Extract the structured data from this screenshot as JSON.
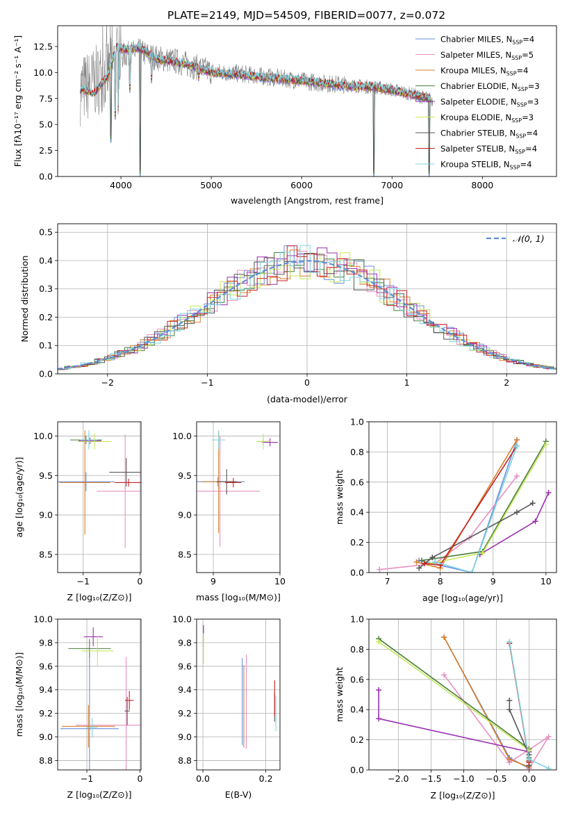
{
  "figure": {
    "title": "PLATE=2149, MJD=54509, FIBERID=0077, z=0.072"
  },
  "palette": {
    "Chabrier MILES": "#6a8fdc",
    "Salpeter MILES": "#e88fc0",
    "Kroupa MILES": "#d87f2b",
    "Chabrier ELODIE": "#4a7d3a",
    "Salpeter ELODIE": "#9a2fb0",
    "Kroupa ELODIE": "#c6e85a",
    "Chabrier STELIB": "#555555",
    "Salpeter STELIB": "#c81f1f",
    "Kroupa STELIB": "#7fd3e0"
  },
  "chart_data": [
    {
      "id": "spectrum",
      "type": "line",
      "title": "PLATE=2149, MJD=54509, FIBERID=0077, z=0.072",
      "xlabel": "wavelength [Angstrom, rest frame]",
      "ylabel": "Flux [fλ10⁻¹⁷ erg cm⁻² s⁻¹ A⁻¹]",
      "xlim": [
        3300,
        8820
      ],
      "ylim": [
        0,
        14.5
      ],
      "xticks": [
        4000,
        5000,
        6000,
        7000,
        8000
      ],
      "yticks": [
        0.0,
        2.5,
        5.0,
        7.5,
        10.0,
        12.5
      ],
      "legend": "top-right",
      "legend_entries": [
        "Chabrier MILES, N_SSP=4",
        "Salpeter MILES, N_SSP=5",
        "Kroupa MILES, N_SSP=4",
        "Chabrier ELODIE, N_SSP=3",
        "Salpeter ELODIE, N_SSP=3",
        "Kroupa ELODIE, N_SSP=3",
        "Chabrier STELIB, N_SSP=4",
        "Salpeter STELIB, N_SSP=4",
        "Kroupa STELIB, N_SSP=4"
      ],
      "data_continuum": {
        "x": [
          3550,
          3700,
          3850,
          4000,
          4200,
          4400,
          4600,
          4800,
          5000,
          5300,
          5600,
          5900,
          6200,
          6500,
          6800,
          7100,
          7350,
          7450
        ],
        "y": [
          8.3,
          9.0,
          10.0,
          11.6,
          12.0,
          11.4,
          11.1,
          10.6,
          10.1,
          9.9,
          9.6,
          9.3,
          9.0,
          8.8,
          8.6,
          8.2,
          7.6,
          7.4
        ]
      },
      "model": {
        "x": [
          3550,
          3700,
          3850,
          3950,
          4050,
          4200,
          4400,
          4600,
          4800,
          5000,
          5300,
          5600,
          5900,
          6200,
          6500,
          6800,
          7100,
          7350,
          7430
        ],
        "y": [
          8.4,
          8.0,
          9.6,
          12.4,
          12.2,
          12.4,
          11.3,
          11.0,
          10.6,
          10.0,
          9.8,
          9.5,
          9.3,
          9.0,
          8.7,
          8.6,
          8.1,
          7.6,
          7.5
        ]
      },
      "absorption_dips": [
        {
          "x": 3890,
          "y": 3.3
        },
        {
          "x": 3935,
          "y": 5.5
        },
        {
          "x": 3970,
          "y": 6.0
        },
        {
          "x": 4100,
          "y": 8.1
        },
        {
          "x": 4215,
          "y": 0.0
        },
        {
          "x": 4340,
          "y": 9.0
        },
        {
          "x": 4860,
          "y": 9.2
        },
        {
          "x": 6800,
          "y": 0.0
        },
        {
          "x": 7410,
          "y": 0.0
        }
      ]
    },
    {
      "id": "residuals",
      "type": "line",
      "xlabel": "(data-model)/error",
      "ylabel": "Normed distribution",
      "xlim": [
        -2.5,
        2.5
      ],
      "ylim": [
        0,
        0.53
      ],
      "xticks": [
        -2,
        -1,
        0,
        1,
        2
      ],
      "yticks": [
        0.0,
        0.1,
        0.2,
        0.3,
        0.4,
        0.5
      ],
      "grid": true,
      "legend": "top-right",
      "reference_curve": {
        "label": "𝒩(0, 1)",
        "mean": 0,
        "sigma": 1
      }
    },
    {
      "id": "z_vs_age",
      "type": "scatter",
      "xlabel": "Z [log₁₀(Z/Z⊙)]",
      "ylabel": "age  [log₁₀(age/yr)]",
      "xlim": [
        -1.45,
        0.02
      ],
      "ylim": [
        8.27,
        10.18
      ],
      "xticks": [
        -1,
        0
      ],
      "yticks": [
        8.5,
        9.0,
        9.5,
        10.0
      ],
      "grid": true,
      "points": [
        {
          "model": "Chabrier MILES",
          "x": -0.95,
          "xerr": 0.5,
          "y": 9.42,
          "yerr": 0.12
        },
        {
          "model": "Salpeter MILES",
          "x": -0.26,
          "xerr": 0.5,
          "y": 9.3,
          "yerr": 0.72
        },
        {
          "model": "Kroupa MILES",
          "x": -0.97,
          "xerr": 0.45,
          "y": 9.41,
          "yerr": 0.66
        },
        {
          "model": "Chabrier ELODIE",
          "x": -0.95,
          "xerr": 0.28,
          "y": 9.95,
          "yerr": 0.05
        },
        {
          "model": "Salpeter ELODIE",
          "x": -0.88,
          "xerr": 0.2,
          "y": 9.94,
          "yerr": 0.04
        },
        {
          "model": "Kroupa ELODIE",
          "x": -0.8,
          "xerr": 0.3,
          "y": 9.93,
          "yerr": 0.1
        },
        {
          "model": "Chabrier STELIB",
          "x": -0.24,
          "xerr": 0.3,
          "y": 9.54,
          "yerr": 0.18
        },
        {
          "model": "Salpeter STELIB",
          "x": -0.2,
          "xerr": 0.25,
          "y": 9.41,
          "yerr": 0.05
        },
        {
          "model": "Kroupa STELIB",
          "x": -0.9,
          "xerr": 0.15,
          "y": 9.95,
          "yerr": 0.12
        }
      ]
    },
    {
      "id": "mass_vs_age",
      "type": "scatter",
      "xlabel": "mass [log₁₀(M/M⊙)]",
      "xlim": [
        8.75,
        10.0
      ],
      "ylim": [
        8.27,
        10.18
      ],
      "xticks": [
        9,
        10
      ],
      "yticks": [
        8.5,
        9.0,
        9.5,
        10.0
      ],
      "grid": true,
      "points": [
        {
          "model": "Chabrier MILES",
          "x": 9.07,
          "xerr": 0.4,
          "y": 9.42,
          "yerr": 0.06
        },
        {
          "model": "Salpeter MILES",
          "x": 9.1,
          "xerr": 0.6,
          "y": 9.3,
          "yerr": 0.7
        },
        {
          "model": "Kroupa MILES",
          "x": 9.08,
          "xerr": 0.25,
          "y": 9.42,
          "yerr": 0.65
        },
        {
          "model": "Chabrier ELODIE",
          "x": 9.75,
          "xerr": 0.1,
          "y": 9.93,
          "yerr": 0.05
        },
        {
          "model": "Salpeter ELODIE",
          "x": 9.85,
          "xerr": 0.12,
          "y": 9.92,
          "yerr": 0.05
        },
        {
          "model": "Kroupa ELODIE",
          "x": 9.75,
          "xerr": 0.1,
          "y": 9.93,
          "yerr": 0.1
        },
        {
          "model": "Chabrier STELIB",
          "x": 9.2,
          "xerr": 0.15,
          "y": 9.42,
          "yerr": 0.16
        },
        {
          "model": "Salpeter STELIB",
          "x": 9.3,
          "xerr": 0.12,
          "y": 9.41,
          "yerr": 0.06
        },
        {
          "model": "Kroupa STELIB",
          "x": 9.08,
          "xerr": 0.1,
          "y": 9.95,
          "yerr": 0.12
        }
      ]
    },
    {
      "id": "age_vs_weight",
      "type": "line",
      "xlabel": "age  [log₁₀(age/yr)]",
      "ylabel": "mass weight",
      "xlim": [
        6.65,
        10.2
      ],
      "ylim": [
        0,
        1.0
      ],
      "xticks": [
        7,
        8,
        9,
        10
      ],
      "yticks": [
        0.0,
        0.2,
        0.4,
        0.6,
        0.8,
        1.0
      ],
      "grid": true,
      "series": [
        {
          "name": "Chabrier MILES",
          "x": [
            7.6,
            8.6,
            9.45
          ],
          "y": [
            0.08,
            0.0,
            0.88
          ]
        },
        {
          "name": "Salpeter MILES",
          "x": [
            6.85,
            7.9,
            8.55,
            9.45
          ],
          "y": [
            0.02,
            0.06,
            0.23,
            0.64
          ]
        },
        {
          "name": "Kroupa MILES",
          "x": [
            7.55,
            8.0,
            9.45
          ],
          "y": [
            0.07,
            0.03,
            0.88
          ]
        },
        {
          "name": "Chabrier ELODIE",
          "x": [
            7.65,
            8.8,
            10.0
          ],
          "y": [
            0.08,
            0.14,
            0.87
          ]
        },
        {
          "name": "Salpeter ELODIE",
          "x": [
            8.75,
            9.8,
            10.05
          ],
          "y": [
            0.12,
            0.34,
            0.53
          ]
        },
        {
          "name": "Kroupa ELODIE",
          "x": [
            7.8,
            8.8,
            10.0
          ],
          "y": [
            0.06,
            0.13,
            0.85
          ]
        },
        {
          "name": "Chabrier STELIB",
          "x": [
            7.6,
            7.85,
            9.45,
            9.75
          ],
          "y": [
            0.03,
            0.1,
            0.4,
            0.46
          ]
        },
        {
          "name": "Salpeter STELIB",
          "x": [
            7.7,
            8.0,
            9.45
          ],
          "y": [
            0.06,
            0.05,
            0.84
          ]
        },
        {
          "name": "Kroupa STELIB",
          "x": [
            7.9,
            8.6,
            9.45
          ],
          "y": [
            0.07,
            0.0,
            0.84
          ]
        }
      ]
    },
    {
      "id": "z_vs_mass",
      "type": "scatter",
      "xlabel": "Z [log₁₀(Z/Z⊙)]",
      "ylabel": "mass [log₁₀(M/M⊙)]",
      "xlim": [
        -1.55,
        0.02
      ],
      "ylim": [
        8.72,
        10.0
      ],
      "xticks": [
        -1,
        0
      ],
      "yticks": [
        8.8,
        9.0,
        9.2,
        9.4,
        9.6,
        9.8,
        10.0
      ],
      "grid": true,
      "points": [
        {
          "model": "Chabrier MILES",
          "x": -0.95,
          "xerr": 0.55,
          "y": 9.07,
          "yerr": 0.6
        },
        {
          "model": "Salpeter MILES",
          "x": -0.26,
          "xerr": 0.95,
          "y": 9.1,
          "yerr": 0.58
        },
        {
          "model": "Kroupa MILES",
          "x": -0.97,
          "xerr": 0.5,
          "y": 9.09,
          "yerr": 0.18
        },
        {
          "model": "Chabrier ELODIE",
          "x": -0.95,
          "xerr": 0.4,
          "y": 9.75,
          "yerr": 0.08
        },
        {
          "model": "Salpeter ELODIE",
          "x": -0.88,
          "xerr": 0.18,
          "y": 9.85,
          "yerr": 0.08
        },
        {
          "model": "Kroupa ELODIE",
          "x": -0.8,
          "xerr": 0.3,
          "y": 9.73,
          "yerr": 0.13
        },
        {
          "model": "Chabrier STELIB",
          "x": -0.24,
          "xerr": 0.05,
          "y": 9.22,
          "yerr": 0.12
        },
        {
          "model": "Salpeter STELIB",
          "x": -0.2,
          "xerr": 0.08,
          "y": 9.31,
          "yerr": 0.08
        },
        {
          "model": "Kroupa STELIB",
          "x": -0.9,
          "xerr": 0.1,
          "y": 9.08,
          "yerr": 0.08
        }
      ]
    },
    {
      "id": "ebv_vs_mass",
      "type": "scatter",
      "xlabel": "E(B-V)",
      "xlim": [
        -0.02,
        0.245
      ],
      "ylim": [
        8.72,
        10.0
      ],
      "xticks": [
        0.0,
        0.2
      ],
      "yticks": [
        8.8,
        9.0,
        9.2,
        9.4,
        9.6,
        9.8,
        10.0
      ],
      "grid": true,
      "points": [
        {
          "model": "Chabrier MILES",
          "x": 0.125,
          "y": 9.3,
          "yerr": 0.37
        },
        {
          "model": "Salpeter MILES",
          "x": 0.138,
          "y": 9.3,
          "yerr": 0.4
        },
        {
          "model": "Kroupa MILES",
          "x": 0.13,
          "y": 9.26,
          "yerr": 0.35
        },
        {
          "model": "Chabrier ELODIE",
          "x": 0.002,
          "y": 9.85,
          "yerr": 0.08
        },
        {
          "model": "Salpeter ELODIE",
          "x": 0.002,
          "y": 9.87,
          "yerr": 0.08
        },
        {
          "model": "Kroupa ELODIE",
          "x": 0.002,
          "y": 9.75,
          "yerr": 0.13
        },
        {
          "model": "Chabrier STELIB",
          "x": 0.228,
          "y": 9.25,
          "yerr": 0.12
        },
        {
          "model": "Salpeter STELIB",
          "x": 0.228,
          "y": 9.33,
          "yerr": 0.15
        },
        {
          "model": "Kroupa STELIB",
          "x": 0.232,
          "y": 9.2,
          "yerr": 0.15
        }
      ]
    },
    {
      "id": "z_vs_weight",
      "type": "line",
      "xlabel": "Z [log₁₀(Z/Z⊙)]",
      "ylabel": "mass weight",
      "xlim": [
        -2.45,
        0.42
      ],
      "ylim": [
        0,
        1.0
      ],
      "xticks": [
        -2.0,
        -1.5,
        -1.0,
        -0.5,
        0.0
      ],
      "yticks": [
        0.0,
        0.2,
        0.4,
        0.6,
        0.8,
        1.0
      ],
      "grid": true,
      "series": [
        {
          "name": "Chabrier MILES",
          "x": [
            -1.3,
            -0.3,
            0.0
          ],
          "y": [
            0.88,
            0.08,
            0.01
          ]
        },
        {
          "name": "Salpeter MILES",
          "x": [
            -1.3,
            -0.3,
            0.3,
            0.0
          ],
          "y": [
            0.63,
            0.05,
            0.22,
            0.01
          ]
        },
        {
          "name": "Kroupa MILES",
          "x": [
            -1.3,
            -0.3,
            0.0
          ],
          "y": [
            0.88,
            0.07,
            0.02
          ]
        },
        {
          "name": "Chabrier ELODIE",
          "x": [
            -2.3,
            0.0,
            0.0
          ],
          "y": [
            0.87,
            0.14,
            0.08
          ]
        },
        {
          "name": "Salpeter ELODIE",
          "x": [
            -2.3,
            -2.3,
            0.0
          ],
          "y": [
            0.53,
            0.34,
            0.12
          ]
        },
        {
          "name": "Kroupa ELODIE",
          "x": [
            -2.3,
            0.0,
            0.0
          ],
          "y": [
            0.85,
            0.13,
            0.06
          ]
        },
        {
          "name": "Chabrier STELIB",
          "x": [
            -0.3,
            -0.3,
            0.0,
            0.0
          ],
          "y": [
            0.46,
            0.4,
            0.1,
            0.03
          ]
        },
        {
          "name": "Salpeter STELIB",
          "x": [
            -0.3,
            0.0,
            0.0
          ],
          "y": [
            0.84,
            0.06,
            0.05
          ]
        },
        {
          "name": "Kroupa STELIB",
          "x": [
            -0.3,
            0.0,
            0.3
          ],
          "y": [
            0.85,
            0.07,
            0.01
          ]
        }
      ]
    }
  ]
}
